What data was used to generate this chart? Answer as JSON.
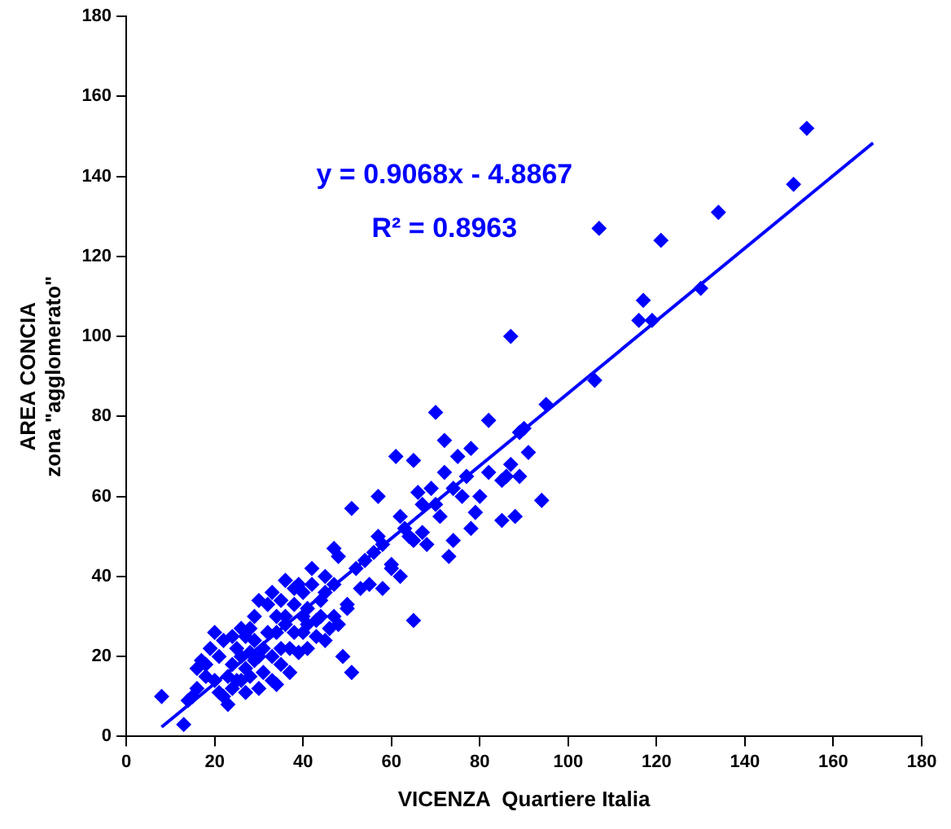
{
  "chart_data": {
    "type": "scatter",
    "xlabel": "VICENZA  Quartiere Italia",
    "ylabel": "AREA CONCIA\nzona \"agglomerato\"",
    "xlim": [
      0,
      180
    ],
    "xticks": [
      0,
      20,
      40,
      60,
      80,
      100,
      120,
      140,
      160,
      180
    ],
    "ylim": [
      0,
      180
    ],
    "yticks": [
      0,
      20,
      40,
      60,
      80,
      100,
      120,
      140,
      160,
      180
    ],
    "grid": false,
    "legend": false,
    "marker": "diamond",
    "annotations": [
      "y = 0.9068x - 4.8867",
      "R² = 0.8963"
    ],
    "series": [
      {
        "color": "#0000ff",
        "x": [
          107,
          121,
          134,
          151,
          154,
          130,
          117,
          116,
          119,
          106,
          87,
          95,
          90,
          89,
          94,
          86,
          87,
          88,
          85,
          82,
          82,
          70,
          72,
          75,
          78,
          77,
          80,
          65,
          61,
          72,
          74,
          66,
          69,
          70,
          71,
          76,
          79,
          67,
          68,
          62,
          63,
          57,
          58,
          56,
          60,
          62,
          65,
          55,
          54,
          52,
          47,
          48,
          51,
          53,
          50,
          44,
          48,
          51,
          49,
          45,
          42,
          40,
          38,
          38,
          36,
          36,
          35,
          33,
          32,
          30,
          29,
          28,
          27,
          26,
          25,
          24,
          23,
          22,
          20,
          19,
          18,
          17,
          16,
          15,
          14,
          13,
          8,
          16,
          20,
          22,
          24,
          25,
          27,
          28,
          30,
          31,
          33,
          34,
          35,
          37,
          39,
          40,
          41,
          43,
          44,
          46,
          47,
          43,
          41,
          45,
          31,
          32,
          29,
          26,
          24,
          21,
          18,
          21,
          23,
          33,
          37,
          38,
          40,
          42,
          39,
          36,
          34,
          34,
          30,
          28,
          26,
          27,
          29,
          35,
          45,
          50,
          58,
          60,
          57,
          67,
          78,
          73,
          74,
          89,
          91,
          65,
          64,
          85,
          47,
          41
        ],
        "values": [
          127,
          124,
          131,
          138,
          152,
          112,
          109,
          104,
          104,
          89,
          100,
          83,
          77,
          76,
          59,
          65,
          68,
          55,
          54,
          66,
          79,
          81,
          74,
          70,
          72,
          65,
          60,
          69,
          70,
          66,
          62,
          61,
          62,
          58,
          55,
          60,
          56,
          51,
          48,
          55,
          52,
          50,
          48,
          46,
          43,
          40,
          29,
          38,
          44,
          42,
          47,
          45,
          57,
          37,
          33,
          30,
          28,
          16,
          20,
          40,
          38,
          36,
          37,
          33,
          30,
          28,
          34,
          36,
          33,
          34,
          30,
          27,
          25,
          20,
          22,
          18,
          15,
          24,
          26,
          22,
          18,
          19,
          12,
          10,
          9,
          3,
          10,
          17,
          14,
          10,
          12,
          14,
          17,
          15,
          12,
          16,
          20,
          13,
          18,
          22,
          21,
          26,
          32,
          29,
          34,
          27,
          30,
          25,
          22,
          24,
          22,
          26,
          24,
          27,
          25,
          20,
          15,
          11,
          8,
          14,
          16,
          26,
          30,
          42,
          38,
          39,
          30,
          26,
          20,
          21,
          14,
          11,
          19,
          22,
          36,
          32,
          37,
          42,
          60,
          58,
          52,
          45,
          49,
          65,
          71,
          49,
          50,
          64,
          38,
          28
        ]
      },
      {
        "type": "line",
        "color": "#0000ff",
        "x": [
          8,
          169
        ],
        "values": [
          2.37,
          148.36
        ],
        "marker": "none"
      }
    ]
  }
}
